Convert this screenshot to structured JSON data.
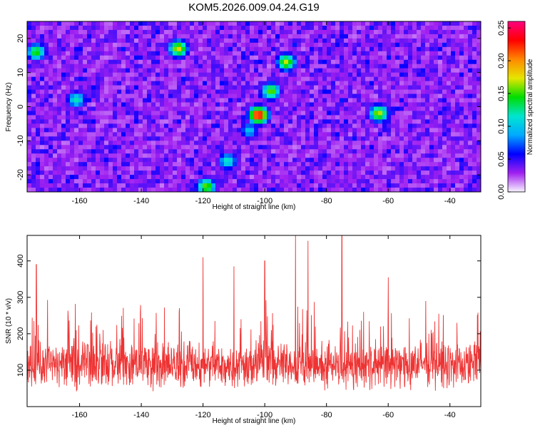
{
  "title": "KOM5.2026.009.04.24.G19",
  "colors": {
    "line": "#ee3333",
    "background": "#ffffff",
    "axis": "#000000",
    "colormap": [
      "#f8f4ff",
      "#a020f0",
      "#0000ff",
      "#00aaff",
      "#00e5d0",
      "#00dd00",
      "#e6e600",
      "#ff8800",
      "#ff0000",
      "#ff0080"
    ]
  },
  "chart_data": [
    {
      "type": "heatmap",
      "xlabel": "Height of straight line (km)",
      "ylabel": "Frequency (Hz)",
      "xlim": [
        -177,
        -30
      ],
      "ylim": [
        -25,
        25
      ],
      "xticks": [
        -160,
        -140,
        -120,
        -100,
        -80,
        -60,
        -40
      ],
      "yticks": [
        -20,
        -10,
        0,
        10,
        20
      ],
      "colorbar": {
        "label": "Normalized spectral amplitude",
        "range": [
          0,
          0.26
        ],
        "ticks": [
          "0.00",
          "0.05",
          "0.10",
          "0.15",
          "0.20",
          "0.25"
        ]
      },
      "hotspots": [
        {
          "x": -102,
          "y": -2.5,
          "value": 0.24
        },
        {
          "x": -93,
          "y": 13,
          "value": 0.17
        },
        {
          "x": -98,
          "y": 4.5,
          "value": 0.16
        },
        {
          "x": -63,
          "y": -2,
          "value": 0.17
        },
        {
          "x": -119,
          "y": -23.5,
          "value": 0.16
        },
        {
          "x": -128,
          "y": 17,
          "value": 0.18
        },
        {
          "x": -174,
          "y": 16,
          "value": 0.15
        },
        {
          "x": -161,
          "y": 2,
          "value": 0.12
        },
        {
          "x": -112,
          "y": -16,
          "value": 0.12
        },
        {
          "x": -105,
          "y": -7,
          "value": 0.1
        }
      ]
    },
    {
      "type": "line",
      "series": [
        {
          "name": "",
          "color": "#ee3333",
          "mean": 115,
          "spread": 60
        }
      ],
      "xlabel": "Height of straight line (km)",
      "ylabel": "SNR (10 * v/v)",
      "xlim": [
        -177,
        -30
      ],
      "ylim": [
        0,
        470
      ],
      "xticks": [
        -160,
        -140,
        -120,
        -100,
        -80,
        -60,
        -40
      ],
      "yticks": [
        100,
        200,
        300,
        400
      ],
      "peaks": [
        {
          "x": -174,
          "y": 390
        },
        {
          "x": -120,
          "y": 410
        },
        {
          "x": -110,
          "y": 385
        },
        {
          "x": -100,
          "y": 400
        },
        {
          "x": -90,
          "y": 470
        },
        {
          "x": -86,
          "y": 455
        },
        {
          "x": -75,
          "y": 470
        },
        {
          "x": -60,
          "y": 355
        }
      ]
    }
  ]
}
